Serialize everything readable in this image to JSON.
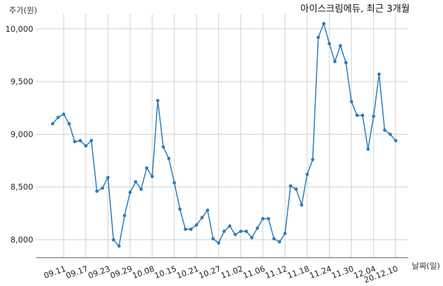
{
  "chart_data": {
    "type": "line",
    "title": "아이스크림에듀, 최근 3개월",
    "ylabel": "주가(원)",
    "xlabel": "날짜(일)",
    "ylim": [
      7830,
      10110
    ],
    "yticks": [
      8000,
      8500,
      9000,
      9500,
      10000
    ],
    "ytick_labels": [
      "8,000",
      "8,500",
      "9,000",
      "9,500",
      "10,000"
    ],
    "xtick_labels": [
      "09.11",
      "09.17",
      "09.23",
      "09.29",
      "10.08",
      "10.15",
      "10.21",
      "10.27",
      "11.02",
      "11.06",
      "11.12",
      "11.18",
      "11.24",
      "11.30",
      "12.04",
      "20.12.10"
    ],
    "xtick_positions": [
      2,
      6,
      10,
      14,
      18,
      22,
      26,
      30,
      34,
      38,
      42,
      46,
      50,
      54,
      58,
      62
    ],
    "grid": true,
    "color": "#2b7bb9",
    "series": [
      {
        "values": [
          9100,
          9160,
          9190,
          9100,
          8930,
          8940,
          8890,
          8940,
          8460,
          8490,
          8590,
          8000,
          7940,
          8230,
          8450,
          8550,
          8480,
          8680,
          8600,
          9320,
          8880,
          8770,
          8540,
          8290,
          8100,
          8100,
          8140,
          8210,
          8280,
          8010,
          7970,
          8080,
          8130,
          8050,
          8080,
          8080,
          8020,
          8110,
          8200,
          8200,
          8010,
          7980,
          8060,
          8510,
          8480,
          8330,
          8620,
          8760,
          9920,
          10050,
          9860,
          9690,
          9840,
          9680,
          9310,
          9180,
          9180,
          8860,
          9170,
          9570,
          9040,
          9000,
          8940
        ]
      }
    ]
  }
}
